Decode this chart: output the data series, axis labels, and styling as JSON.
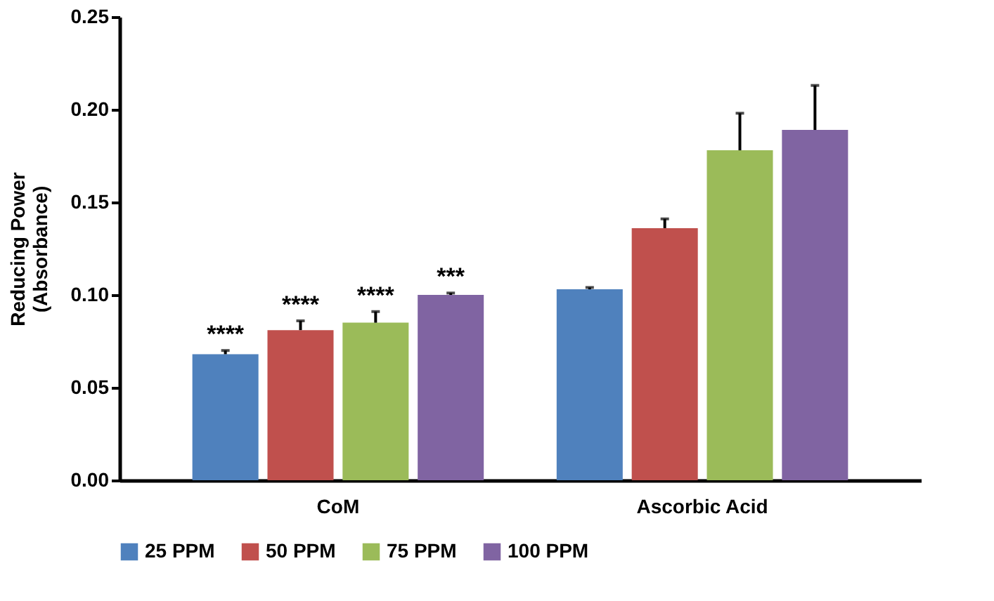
{
  "chart_data": {
    "type": "bar",
    "ylabel": "Reducing Power\n(Absorbance)",
    "categories": [
      "CoM",
      "Ascorbic Acid"
    ],
    "series": [
      {
        "name": "25 PPM",
        "color": "#4f81bd",
        "values": [
          0.068,
          0.103
        ],
        "errors": [
          0.002,
          0.001
        ]
      },
      {
        "name": "50 PPM",
        "color": "#c0504d",
        "values": [
          0.081,
          0.136
        ],
        "errors": [
          0.005,
          0.005
        ]
      },
      {
        "name": "75 PPM",
        "color": "#9bbb59",
        "values": [
          0.085,
          0.178
        ],
        "errors": [
          0.006,
          0.02
        ]
      },
      {
        "name": "100 PPM",
        "color": "#8064a2",
        "values": [
          0.1,
          0.189
        ],
        "errors": [
          0.001,
          0.024
        ]
      }
    ],
    "ylim": [
      0,
      0.25
    ],
    "yticks": [
      {
        "value": 0,
        "label": "0.00"
      },
      {
        "value": 0.05,
        "label": "0.05"
      },
      {
        "value": 0.1,
        "label": "0.10"
      },
      {
        "value": 0.15,
        "label": "0.15"
      },
      {
        "value": 0.2,
        "label": "0.20"
      },
      {
        "value": 0.25,
        "label": "0.25"
      }
    ],
    "annotations": [
      "****",
      "****",
      "****",
      "***"
    ],
    "grid": false,
    "legend": "bottom"
  }
}
